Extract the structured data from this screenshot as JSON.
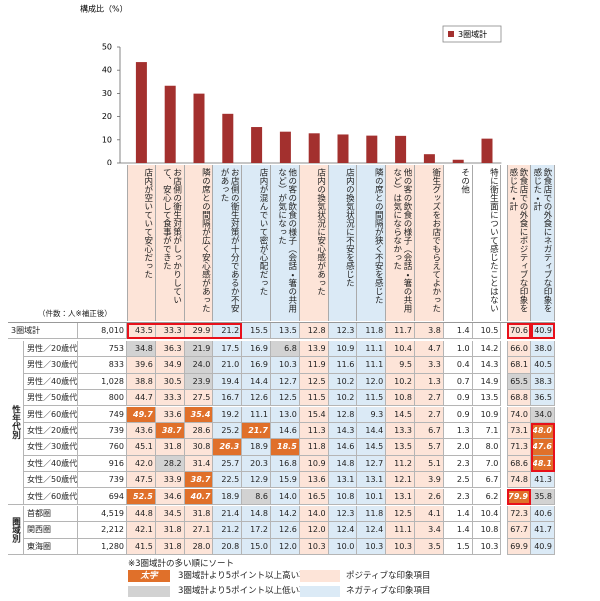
{
  "chart_data": {
    "type": "bar",
    "y_axis_label": "構成比（%）",
    "legend": "3圏域計",
    "color": "#a3302e",
    "categories": [
      "店内が空いていて安心だった",
      "お店側の衛生対策がしっかりしていて、安心して食事ができた",
      "隣の席との間隔が広く安心感があった",
      "お店側の衛生対策が十分であるか不安があった",
      "店内が混んでいて密が心配だった",
      "他の客の飲食の様子（会話・箸の共用など）が気になった",
      "店内の換気状況に安心感があった",
      "店内の換気状況に不安を感じた",
      "隣の席との間隔が狭く不安を感じた",
      "他の客の飲食の様子（会話・箸の共用など）は気にならなかった",
      "衛生グッズをお店でもらえてよかった",
      "その他",
      "特に衛生面について感じたことはない"
    ],
    "values": [
      43.5,
      33.3,
      29.9,
      21.2,
      15.5,
      13.5,
      12.8,
      12.3,
      11.8,
      11.7,
      3.8,
      1.4,
      10.5
    ],
    "ylim": [
      0,
      50
    ],
    "yticks": [
      0,
      10,
      20,
      30,
      40,
      50
    ]
  },
  "table": {
    "summary_columns": [
      "飲食店での外食にポジティブな印象を感じた・計",
      "飲食店での外食にネガティブな印象を感じた・計"
    ],
    "count_header": "（件数：人※補正後）",
    "total": {
      "label": "3圏域計",
      "count": "8,010",
      "cells": [
        "43.5",
        "33.3",
        "29.9",
        "21.2",
        "15.5",
        "13.5",
        "12.8",
        "12.3",
        "11.8",
        "11.7",
        "3.8",
        "1.4",
        "10.5",
        "70.6",
        "40.9"
      ]
    },
    "groups": [
      {
        "label": "性年代別",
        "rows": [
          {
            "label": "男性／20歳代",
            "count": "753",
            "cells": [
              "34.8",
              "36.3",
              "21.9",
              "17.5",
              "16.9",
              "6.8",
              "13.9",
              "10.9",
              "11.1",
              "10.4",
              "4.7",
              "1.0",
              "14.2",
              "66.0",
              "38.0"
            ]
          },
          {
            "label": "男性／30歳代",
            "count": "833",
            "cells": [
              "39.6",
              "34.9",
              "24.0",
              "21.0",
              "16.9",
              "10.3",
              "11.9",
              "11.6",
              "11.1",
              "9.5",
              "3.3",
              "0.4",
              "14.3",
              "68.1",
              "40.5"
            ]
          },
          {
            "label": "男性／40歳代",
            "count": "1,028",
            "cells": [
              "38.8",
              "30.5",
              "23.9",
              "19.4",
              "14.4",
              "12.7",
              "12.5",
              "10.2",
              "12.0",
              "10.2",
              "1.3",
              "0.7",
              "14.9",
              "65.5",
              "38.3"
            ]
          },
          {
            "label": "男性／50歳代",
            "count": "800",
            "cells": [
              "44.7",
              "33.3",
              "27.5",
              "16.7",
              "12.6",
              "12.5",
              "11.5",
              "10.2",
              "11.5",
              "10.8",
              "2.7",
              "0.9",
              "13.5",
              "68.8",
              "36.5"
            ]
          },
          {
            "label": "男性／60歳代",
            "count": "749",
            "cells": [
              "49.7",
              "33.6",
              "35.4",
              "19.2",
              "11.1",
              "13.0",
              "15.4",
              "12.8",
              "9.3",
              "14.5",
              "2.7",
              "0.9",
              "10.9",
              "74.0",
              "34.0"
            ]
          },
          {
            "label": "女性／20歳代",
            "count": "739",
            "cells": [
              "43.6",
              "38.7",
              "28.6",
              "25.2",
              "21.7",
              "14.6",
              "11.3",
              "14.3",
              "14.4",
              "13.3",
              "6.7",
              "1.3",
              "7.1",
              "73.1",
              "48.0"
            ]
          },
          {
            "label": "女性／30歳代",
            "count": "760",
            "cells": [
              "45.1",
              "31.8",
              "30.8",
              "26.3",
              "18.9",
              "18.5",
              "11.8",
              "14.6",
              "14.5",
              "13.5",
              "5.7",
              "2.0",
              "8.0",
              "71.3",
              "47.6"
            ]
          },
          {
            "label": "女性／40歳代",
            "count": "916",
            "cells": [
              "42.0",
              "28.2",
              "31.4",
              "25.7",
              "20.3",
              "16.8",
              "10.9",
              "14.8",
              "12.7",
              "11.2",
              "5.1",
              "2.3",
              "7.0",
              "68.6",
              "48.1"
            ]
          },
          {
            "label": "女性／50歳代",
            "count": "739",
            "cells": [
              "47.5",
              "33.9",
              "38.7",
              "22.5",
              "12.9",
              "15.9",
              "13.6",
              "13.1",
              "13.1",
              "12.1",
              "3.9",
              "2.5",
              "6.7",
              "74.8",
              "41.3"
            ]
          },
          {
            "label": "女性／60歳代",
            "count": "694",
            "cells": [
              "52.5",
              "34.6",
              "40.7",
              "18.9",
              "8.6",
              "14.0",
              "16.5",
              "10.8",
              "10.1",
              "13.1",
              "2.6",
              "2.3",
              "6.2",
              "79.9",
              "35.8"
            ]
          }
        ]
      },
      {
        "label": "圏域別",
        "rows": [
          {
            "label": "首都圏",
            "count": "4,519",
            "cells": [
              "44.8",
              "34.5",
              "31.8",
              "21.4",
              "14.8",
              "14.2",
              "14.0",
              "12.3",
              "11.8",
              "12.5",
              "4.1",
              "1.4",
              "10.4",
              "72.3",
              "40.6"
            ]
          },
          {
            "label": "関西圏",
            "count": "2,212",
            "cells": [
              "42.1",
              "31.8",
              "27.1",
              "21.2",
              "17.2",
              "12.6",
              "12.0",
              "12.4",
              "12.4",
              "11.1",
              "3.4",
              "1.4",
              "10.8",
              "67.7",
              "41.7"
            ]
          },
          {
            "label": "東海圏",
            "count": "1,280",
            "cells": [
              "41.5",
              "31.8",
              "28.0",
              "20.8",
              "15.0",
              "12.0",
              "10.3",
              "10.0",
              "10.3",
              "10.3",
              "3.5",
              "1.5",
              "10.3",
              "69.9",
              "40.9"
            ]
          }
        ]
      }
    ]
  },
  "footer": {
    "sort_note": "※3圏域計の多い順にソート",
    "high_sample": "太字",
    "high_label": "3圏域計より5ポイント以上高い項目",
    "low_label": "3圏域計より5ポイント以上低い項目",
    "positive_label": "ポジティブな印象項目",
    "negative_label": "ネガティブな印象項目"
  }
}
